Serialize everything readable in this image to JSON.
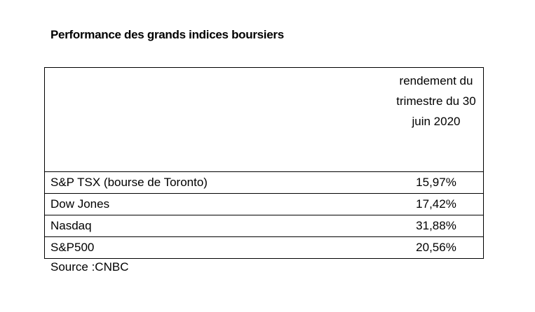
{
  "title": "Performance des grands indices boursiers",
  "table": {
    "header": [
      null,
      "rendement du trimestre du 30 juin 2020"
    ],
    "rows": [
      [
        "S&P TSX (bourse de Toronto)",
        "15,97%"
      ],
      [
        "Dow Jones",
        "17,42%"
      ],
      [
        "Nasdaq",
        "31,88%"
      ],
      [
        "S&P500",
        "20,56%"
      ]
    ]
  },
  "source": "Source :CNBC"
}
